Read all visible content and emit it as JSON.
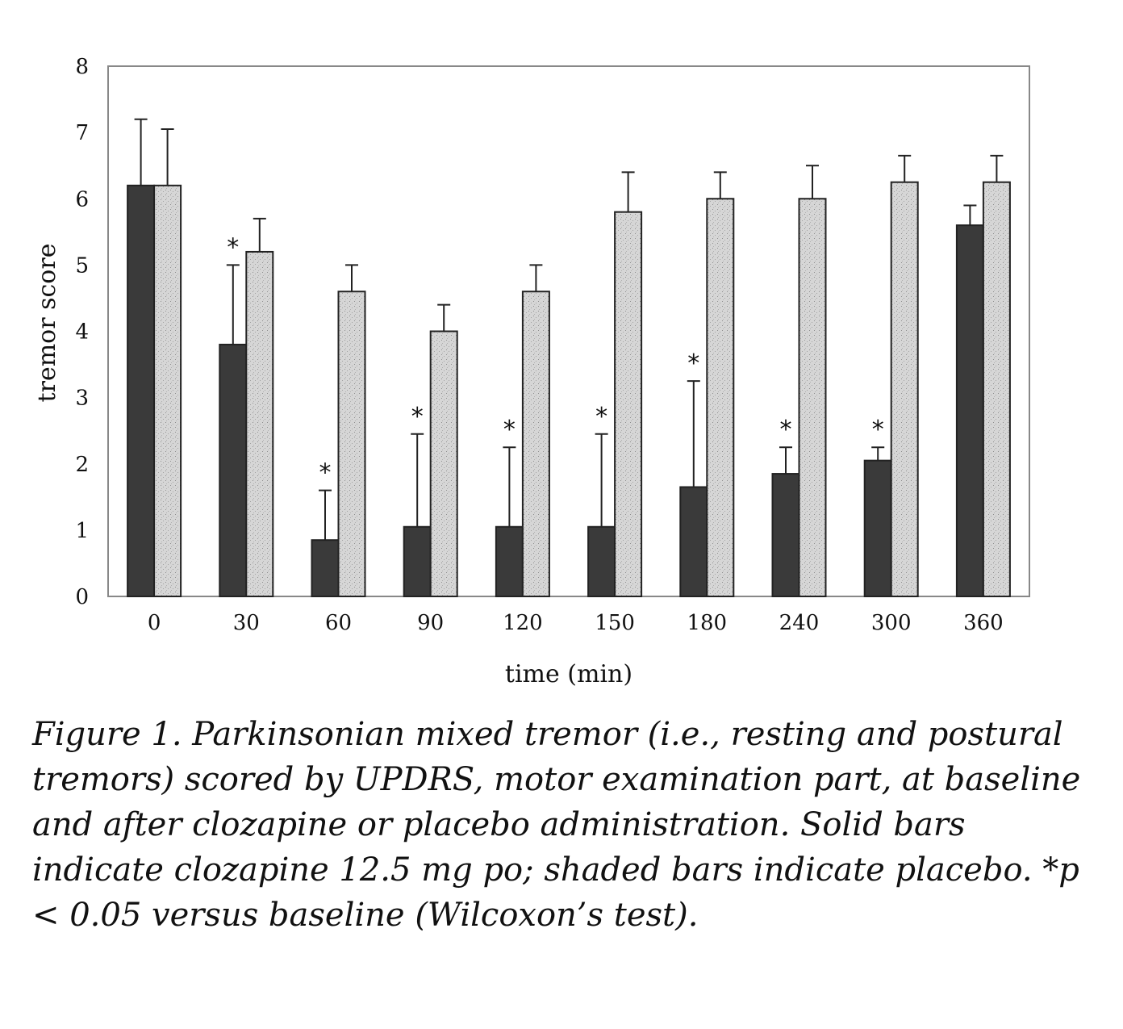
{
  "chart_data": {
    "type": "bar",
    "categories": [
      "0",
      "30",
      "60",
      "90",
      "120",
      "150",
      "180",
      "240",
      "300",
      "360"
    ],
    "series": [
      {
        "values": [
          6.2,
          3.8,
          0.85,
          1.05,
          1.05,
          1.05,
          1.65,
          1.85,
          2.05,
          5.6
        ],
        "errors": [
          1.0,
          1.2,
          0.75,
          1.4,
          1.2,
          1.4,
          1.6,
          0.4,
          0.2,
          0.3
        ],
        "color": "#3a3a3a",
        "significant": [
          false,
          true,
          true,
          true,
          true,
          true,
          true,
          true,
          true,
          false
        ]
      },
      {
        "values": [
          6.2,
          5.2,
          4.6,
          4.0,
          4.6,
          5.8,
          6.0,
          6.0,
          6.25,
          6.25
        ],
        "errors": [
          0.85,
          0.5,
          0.4,
          0.4,
          0.4,
          0.6,
          0.4,
          0.5,
          0.4,
          0.4
        ],
        "color": "#d4d4d4",
        "significant": [
          false,
          false,
          false,
          false,
          false,
          false,
          false,
          false,
          false,
          false
        ]
      }
    ],
    "xlabel": "time (min)",
    "ylabel": "tremor score",
    "ylim": [
      0,
      8
    ],
    "yticks": [
      "0",
      "1",
      "2",
      "3",
      "4",
      "5",
      "6",
      "7",
      "8"
    ],
    "significance_marker": "*",
    "grid": false
  },
  "caption": "Figure 1. Parkinsonian mixed tremor (i.e., resting and postural tremors) scored by UPDRS, motor examination part, at baseline and after clozapine or placebo administration. Solid bars indicate clozapine 12.5 mg po; shaded bars indicate placebo. *p < 0.05 versus baseline (Wilcoxon’s test)."
}
